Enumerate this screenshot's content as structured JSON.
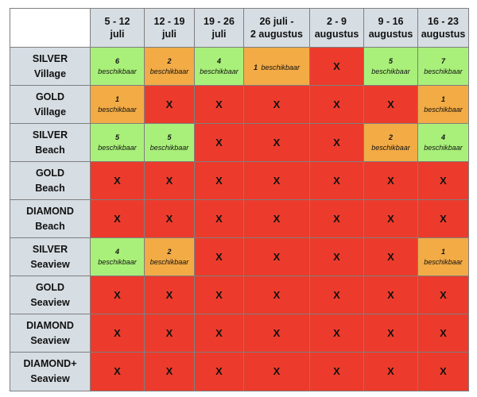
{
  "colors": {
    "full": "#ec3b2c",
    "few": "#f2ab45",
    "many": "#a9f07a",
    "header": "#d6dde3"
  },
  "columns": [
    {
      "line1": "5 - 12",
      "line2": "juli"
    },
    {
      "line1": "12 - 19",
      "line2": "juli"
    },
    {
      "line1": "19 - 26",
      "line2": "juli"
    },
    {
      "line1": "26 juli -",
      "line2": "2 augustus"
    },
    {
      "line1": "2 - 9",
      "line2": "augustus"
    },
    {
      "line1": "9 - 16",
      "line2": "augustus"
    },
    {
      "line1": "16 - 23",
      "line2": "augustus"
    }
  ],
  "rows": [
    {
      "line1": "SILVER",
      "line2": "Village",
      "cells": [
        {
          "status": "many",
          "count": "6",
          "label": "beschikbaar"
        },
        {
          "status": "few",
          "count": "2",
          "label": "beschikbaar"
        },
        {
          "status": "many",
          "count": "4",
          "label": "beschikbaar"
        },
        {
          "status": "few",
          "count": "1",
          "label": "beschikbaar",
          "inline": true
        },
        {
          "status": "full",
          "mark": "X"
        },
        {
          "status": "many",
          "count": "5",
          "label": "beschikbaar"
        },
        {
          "status": "many",
          "count": "7",
          "label": "beschikbaar"
        }
      ]
    },
    {
      "line1": "GOLD",
      "line2": "Village",
      "cells": [
        {
          "status": "few",
          "count": "1",
          "label": "beschikbaar"
        },
        {
          "status": "full",
          "mark": "X"
        },
        {
          "status": "full",
          "mark": "X"
        },
        {
          "status": "full",
          "mark": "X"
        },
        {
          "status": "full",
          "mark": "X"
        },
        {
          "status": "full",
          "mark": "X"
        },
        {
          "status": "few",
          "count": "1",
          "label": "beschikbaar"
        }
      ]
    },
    {
      "line1": "SILVER",
      "line2": "Beach",
      "cells": [
        {
          "status": "many",
          "count": "5",
          "label": "beschikbaar"
        },
        {
          "status": "many",
          "count": "5",
          "label": "beschikbaar"
        },
        {
          "status": "full",
          "mark": "X"
        },
        {
          "status": "full",
          "mark": "X"
        },
        {
          "status": "full",
          "mark": "X"
        },
        {
          "status": "few",
          "count": "2",
          "label": "beschikbaar"
        },
        {
          "status": "many",
          "count": "4",
          "label": "beschikbaar"
        }
      ]
    },
    {
      "line1": "GOLD",
      "line2": "Beach",
      "cells": [
        {
          "status": "full",
          "mark": "X"
        },
        {
          "status": "full",
          "mark": "X"
        },
        {
          "status": "full",
          "mark": "X"
        },
        {
          "status": "full",
          "mark": "X"
        },
        {
          "status": "full",
          "mark": "X"
        },
        {
          "status": "full",
          "mark": "X"
        },
        {
          "status": "full",
          "mark": "X"
        }
      ]
    },
    {
      "line1": "DIAMOND",
      "line2": "Beach",
      "cells": [
        {
          "status": "full",
          "mark": "X"
        },
        {
          "status": "full",
          "mark": "X"
        },
        {
          "status": "full",
          "mark": "X"
        },
        {
          "status": "full",
          "mark": "X"
        },
        {
          "status": "full",
          "mark": "X"
        },
        {
          "status": "full",
          "mark": "X"
        },
        {
          "status": "full",
          "mark": "X"
        }
      ]
    },
    {
      "line1": "SILVER",
      "line2": "Seaview",
      "cells": [
        {
          "status": "many",
          "count": "4",
          "label": "beschikbaar"
        },
        {
          "status": "few",
          "count": "2",
          "label": "beschikbaar"
        },
        {
          "status": "full",
          "mark": "X"
        },
        {
          "status": "full",
          "mark": "X"
        },
        {
          "status": "full",
          "mark": "X"
        },
        {
          "status": "full",
          "mark": "X"
        },
        {
          "status": "few",
          "count": "1",
          "label": "beschikbaar"
        }
      ]
    },
    {
      "line1": "GOLD",
      "line2": "Seaview",
      "cells": [
        {
          "status": "full",
          "mark": "X"
        },
        {
          "status": "full",
          "mark": "X"
        },
        {
          "status": "full",
          "mark": "X"
        },
        {
          "status": "full",
          "mark": "X"
        },
        {
          "status": "full",
          "mark": "X"
        },
        {
          "status": "full",
          "mark": "X"
        },
        {
          "status": "full",
          "mark": "X"
        }
      ]
    },
    {
      "line1": "DIAMOND",
      "line2": "Seaview",
      "cells": [
        {
          "status": "full",
          "mark": "X"
        },
        {
          "status": "full",
          "mark": "X"
        },
        {
          "status": "full",
          "mark": "X"
        },
        {
          "status": "full",
          "mark": "X"
        },
        {
          "status": "full",
          "mark": "X"
        },
        {
          "status": "full",
          "mark": "X"
        },
        {
          "status": "full",
          "mark": "X"
        }
      ]
    },
    {
      "line1": "DIAMOND+",
      "line2": "Seaview",
      "cells": [
        {
          "status": "full",
          "mark": "X"
        },
        {
          "status": "full",
          "mark": "X"
        },
        {
          "status": "full",
          "mark": "X"
        },
        {
          "status": "full",
          "mark": "X"
        },
        {
          "status": "full",
          "mark": "X"
        },
        {
          "status": "full",
          "mark": "X"
        },
        {
          "status": "full",
          "mark": "X"
        }
      ]
    }
  ]
}
